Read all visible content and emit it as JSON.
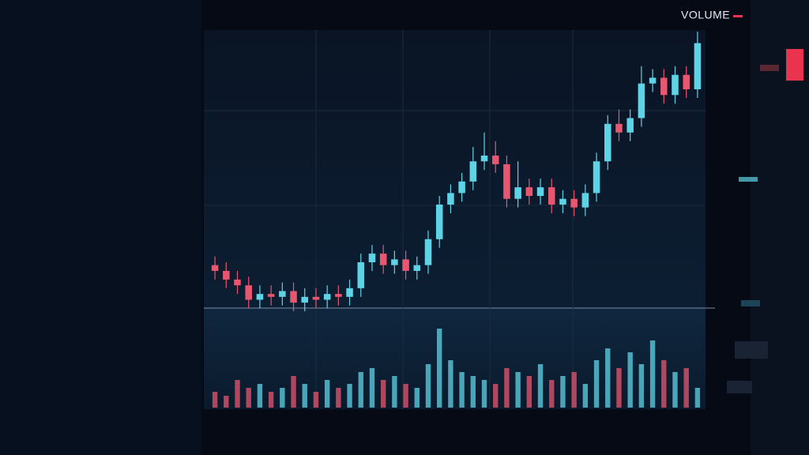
{
  "chart_data": {
    "type": "candlestick",
    "title": "VOLUME",
    "open": [
      19,
      17,
      14,
      12,
      7,
      9,
      8,
      10,
      6,
      8,
      7,
      9,
      8,
      11,
      20,
      23,
      19,
      21,
      17,
      19,
      28,
      40,
      44,
      48,
      55,
      57,
      54,
      42,
      46,
      43,
      46,
      40,
      42,
      39,
      44,
      55,
      68,
      65,
      70,
      82,
      84,
      78,
      85,
      80
    ],
    "high": [
      22,
      20,
      17,
      15,
      12,
      12,
      13,
      13,
      11,
      11,
      12,
      12,
      14,
      23,
      26,
      26,
      24,
      24,
      22,
      31,
      43,
      47,
      51,
      60,
      65,
      62,
      57,
      55,
      49,
      49,
      49,
      45,
      45,
      47,
      58,
      71,
      73,
      73,
      88,
      87,
      87,
      88,
      88,
      100
    ],
    "low": [
      14,
      11,
      9,
      4,
      4,
      5,
      5,
      3,
      3,
      4,
      4,
      5,
      5,
      8,
      17,
      16,
      16,
      14,
      14,
      16,
      25,
      37,
      41,
      45,
      52,
      51,
      39,
      39,
      40,
      40,
      37,
      37,
      36,
      36,
      41,
      52,
      62,
      62,
      67,
      79,
      75,
      75,
      77,
      77
    ],
    "close": [
      17,
      14,
      12,
      7,
      9,
      8,
      10,
      6,
      8,
      7,
      9,
      8,
      11,
      20,
      23,
      19,
      21,
      17,
      19,
      28,
      40,
      44,
      48,
      55,
      57,
      54,
      42,
      46,
      43,
      46,
      40,
      42,
      39,
      44,
      55,
      68,
      65,
      70,
      82,
      84,
      78,
      85,
      80,
      96
    ],
    "volume": [
      20,
      15,
      35,
      25,
      30,
      20,
      25,
      40,
      30,
      20,
      35,
      25,
      30,
      45,
      50,
      35,
      40,
      30,
      25,
      55,
      100,
      60,
      45,
      40,
      35,
      30,
      50,
      45,
      40,
      55,
      35,
      40,
      45,
      30,
      60,
      75,
      50,
      70,
      55,
      85,
      60,
      45,
      50,
      25
    ],
    "ylim": [
      0,
      100
    ],
    "up_color": "#5fd3e6",
    "down_color": "#e8566f"
  }
}
